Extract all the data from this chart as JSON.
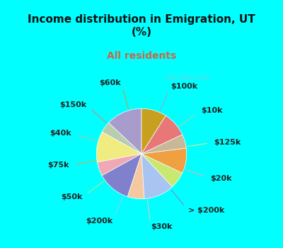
{
  "title": "Income distribution in Emigration, UT\n(%)",
  "subtitle": "All residents",
  "title_color": "#111111",
  "subtitle_color": "#cc6644",
  "bg_cyan": "#00ffff",
  "bg_chart": "#dff0e8",
  "labels": [
    "$100k",
    "$10k",
    "$125k",
    "$20k",
    "> $200k",
    "$30k",
    "$200k",
    "$50k",
    "$75k",
    "$40k",
    "$150k",
    "$60k"
  ],
  "sizes": [
    13,
    4,
    11,
    5,
    12,
    6,
    11,
    6,
    9,
    5,
    9,
    9
  ],
  "colors": [
    "#a89ccc",
    "#b8ccb0",
    "#f0ec80",
    "#f0a8b4",
    "#8080cc",
    "#f5c8a0",
    "#a8c4f0",
    "#c8e870",
    "#f0a040",
    "#c8b898",
    "#e87878",
    "#c8a020"
  ],
  "label_fontsize": 8,
  "startangle": 90,
  "watermark": "  City-Data.com"
}
